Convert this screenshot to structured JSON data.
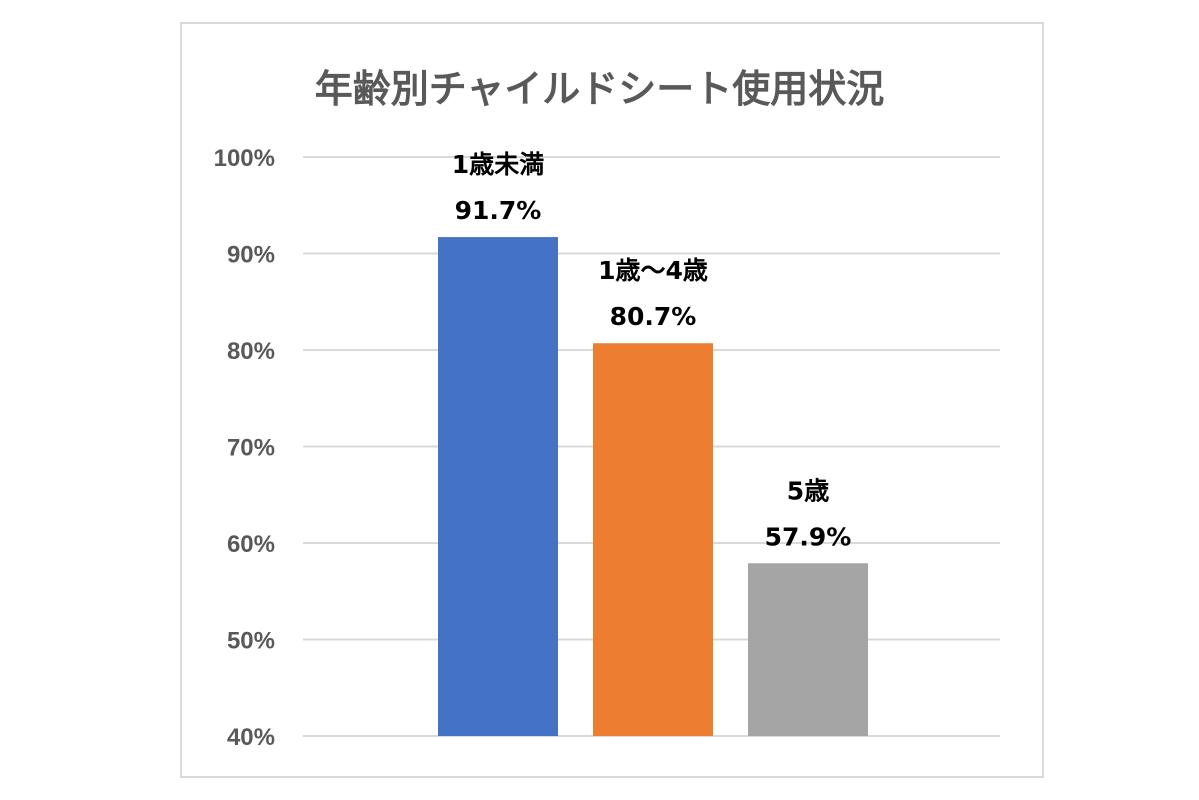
{
  "chart_data": {
    "type": "bar",
    "title": "年齢別チャイルドシート使用状況",
    "categories": [
      "1歳未満",
      "1歳～4歳",
      "5歳"
    ],
    "values": [
      91.7,
      80.7,
      57.9
    ],
    "value_labels": [
      "91.7%",
      "80.7%",
      "57.9%"
    ],
    "colors": [
      "#4472c4",
      "#ed7d31",
      "#a5a5a5"
    ],
    "ylim": [
      40,
      100
    ],
    "yticks": [
      40,
      50,
      60,
      70,
      80,
      90,
      100
    ],
    "ytick_labels": [
      "40%",
      "50%",
      "60%",
      "70%",
      "80%",
      "90%",
      "100%"
    ],
    "grid": true,
    "legend": "none",
    "xlabel": "",
    "ylabel": ""
  }
}
